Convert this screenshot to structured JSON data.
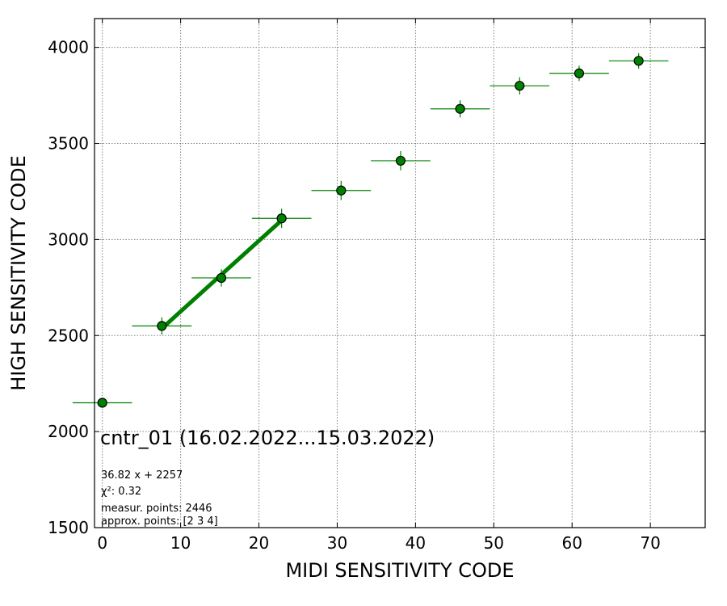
{
  "chart_data": {
    "type": "scatter",
    "title": "cntr_01 (16.02.2022...15.03.2022)",
    "xlabel": "MIDI SENSITIVITY CODE",
    "ylabel": "HIGH SENSITIVITY CODE",
    "xlim": [
      -1,
      77
    ],
    "ylim": [
      1500,
      4150
    ],
    "x_ticks": [
      0,
      10,
      20,
      30,
      40,
      50,
      60,
      70
    ],
    "y_ticks": [
      1500,
      2000,
      2500,
      3000,
      3500,
      4000
    ],
    "grid": true,
    "series": [
      {
        "type": "errorbar",
        "color": "#008000",
        "marker": "circle",
        "x": [
          0,
          7.6,
          15.2,
          22.9,
          30.5,
          38.1,
          45.7,
          53.3,
          60.9,
          68.5
        ],
        "y": [
          2150,
          2550,
          2800,
          3110,
          3255,
          3410,
          3680,
          3800,
          3865,
          3930
        ],
        "xerr": [
          3.8,
          3.8,
          3.8,
          3.8,
          3.8,
          3.8,
          3.8,
          3.8,
          3.8,
          3.8
        ],
        "yerr": [
          20,
          45,
          45,
          50,
          50,
          50,
          45,
          45,
          40,
          40
        ]
      },
      {
        "type": "fit-line",
        "color": "#008000",
        "x": [
          7.6,
          22.9
        ],
        "y": [
          2537,
          3100
        ]
      }
    ],
    "annotations": [
      "36.82 x + 2257",
      "χ²: 0.32",
      "measur. points: 2446",
      "approx. points: [2 3 4]"
    ]
  }
}
